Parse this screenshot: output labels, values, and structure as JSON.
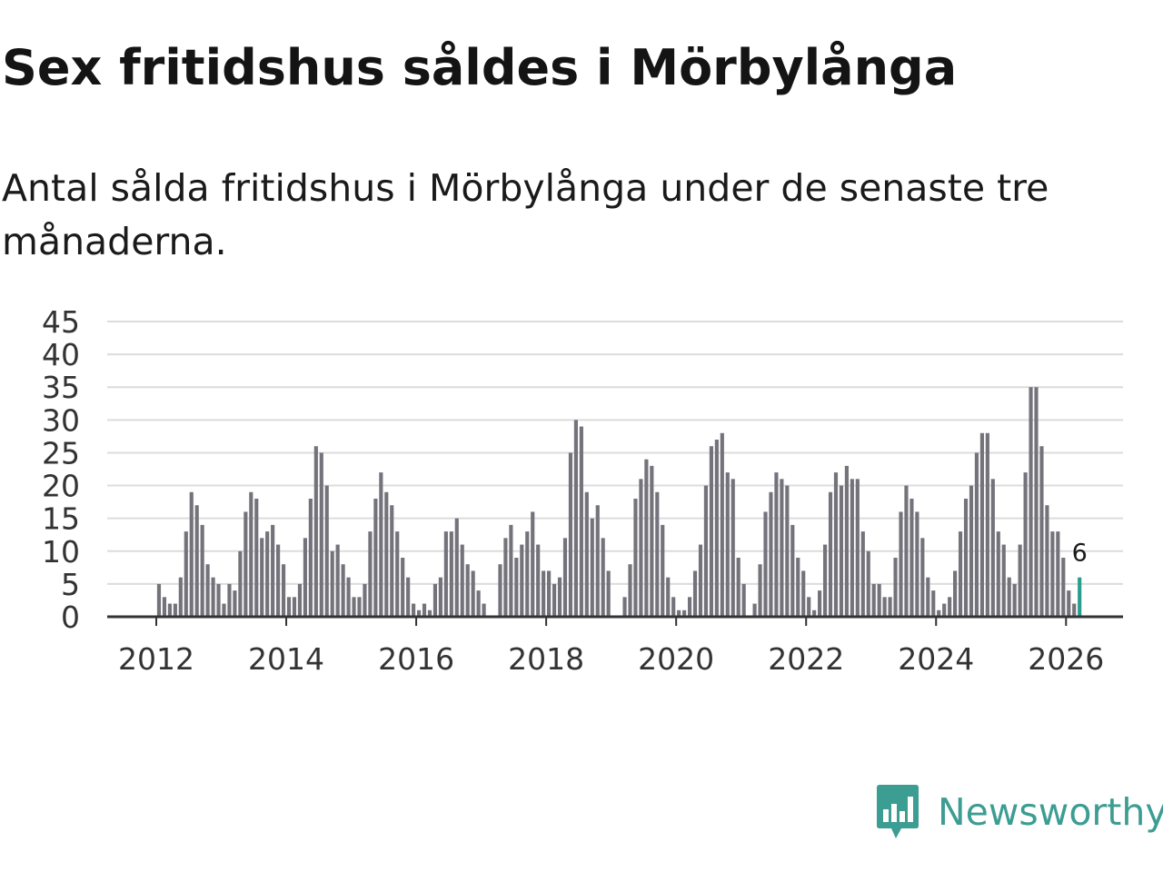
{
  "title": "Sex fritidshus såldes i Mörbylånga",
  "subtitle": "Antal sålda fritidshus i Mörbylånga under de senaste tre månaderna.",
  "brand": {
    "name": "Newsworthy",
    "icon": "newsworthy-logo-icon",
    "color": "#3c9d93"
  },
  "colors": {
    "bar": "#74737b",
    "highlight": "#2a9d8f",
    "grid": "#dcdcdc",
    "axis": "#333333"
  },
  "chart_data": {
    "type": "bar",
    "ylim": [
      0,
      45
    ],
    "yticks": [
      0,
      5,
      10,
      15,
      20,
      25,
      30,
      35,
      40,
      45
    ],
    "xticks": [
      {
        "label": "2012",
        "date": "2012-01"
      },
      {
        "label": "2014",
        "date": "2014-01"
      },
      {
        "label": "2016",
        "date": "2016-01"
      },
      {
        "label": "2018",
        "date": "2018-01"
      },
      {
        "label": "2020",
        "date": "2020-01"
      },
      {
        "label": "2022",
        "date": "2022-01"
      },
      {
        "label": "2024",
        "date": "2024-01"
      },
      {
        "label": "2026",
        "date": "2026-01"
      }
    ],
    "grid": true,
    "start_month": "2011-01",
    "values": [
      0,
      0,
      0,
      0,
      0,
      0,
      0,
      0,
      0,
      0,
      0,
      0,
      5,
      3,
      2,
      2,
      6,
      13,
      19,
      17,
      14,
      8,
      6,
      5,
      2,
      5,
      4,
      10,
      16,
      19,
      18,
      12,
      13,
      14,
      11,
      8,
      3,
      3,
      5,
      12,
      18,
      26,
      25,
      20,
      10,
      11,
      8,
      6,
      3,
      3,
      5,
      13,
      18,
      22,
      19,
      17,
      13,
      9,
      6,
      2,
      1,
      2,
      1,
      5,
      6,
      13,
      13,
      15,
      11,
      8,
      7,
      4,
      2,
      0,
      0,
      8,
      12,
      14,
      9,
      11,
      13,
      16,
      11,
      7,
      7,
      5,
      6,
      12,
      25,
      30,
      29,
      19,
      15,
      17,
      12,
      7,
      0,
      0,
      3,
      8,
      18,
      21,
      24,
      23,
      19,
      14,
      6,
      3,
      1,
      1,
      3,
      7,
      11,
      20,
      26,
      27,
      28,
      22,
      21,
      9,
      5,
      0,
      2,
      8,
      16,
      19,
      22,
      21,
      20,
      14,
      9,
      7,
      3,
      1,
      4,
      11,
      19,
      22,
      20,
      23,
      21,
      21,
      13,
      10,
      5,
      5,
      3,
      3,
      9,
      16,
      20,
      18,
      16,
      12,
      6,
      4,
      1,
      2,
      3,
      7,
      13,
      18,
      20,
      25,
      28,
      28,
      21,
      13,
      11,
      6,
      5,
      11,
      22,
      35,
      35,
      26,
      17,
      13,
      13,
      9,
      4,
      2,
      6
    ],
    "highlight_label": "6"
  }
}
